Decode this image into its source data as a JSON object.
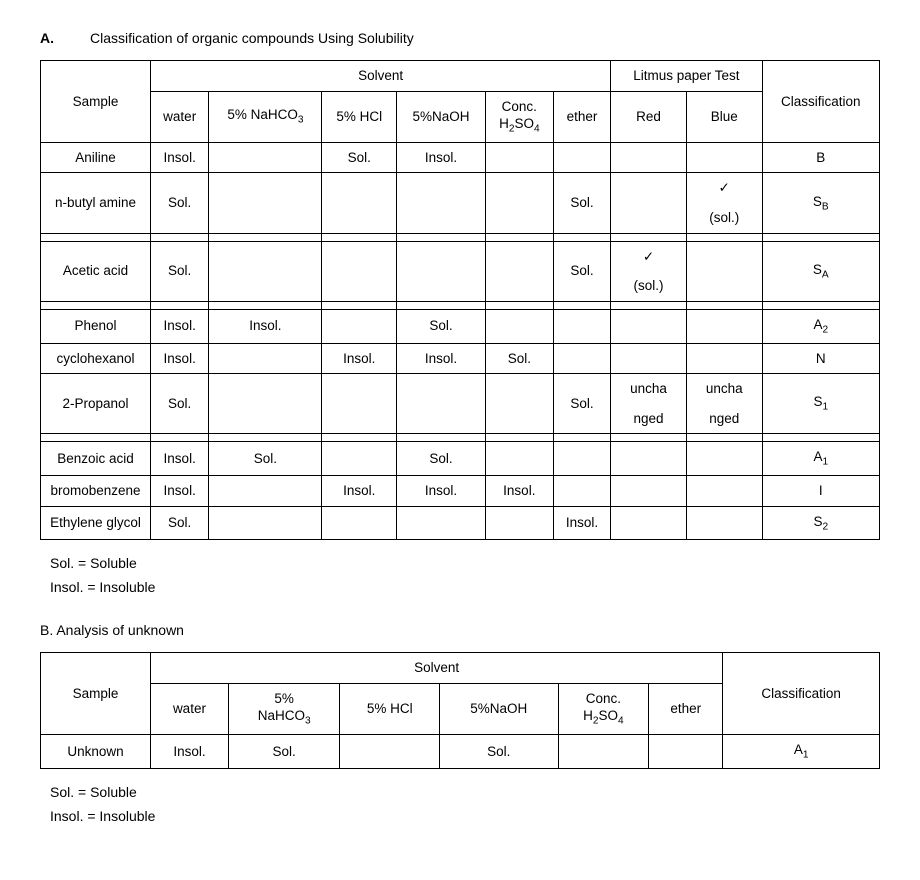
{
  "sectionA": {
    "letter": "A.",
    "title": "Classification of organic compounds Using Solubility",
    "headers": {
      "sample": "Sample",
      "solvent": "Solvent",
      "litmus": "Litmus paper Test",
      "classification": "Classification",
      "water": "water",
      "nahco3": "5% NaHCO",
      "nahco3_sub": "3",
      "hcl": "5% HCl",
      "naoh": "5%NaOH",
      "h2so4_line1": "Conc.",
      "h2so4_line2_a": "H",
      "h2so4_line2_b": "2",
      "h2so4_line2_c": "SO",
      "h2so4_line2_d": "4",
      "ether": "ether",
      "red": "Red",
      "blue": "Blue"
    },
    "rows": [
      {
        "sample": "Aniline",
        "water": "Insol.",
        "nahco3": "",
        "hcl": "Sol.",
        "naoh": "Insol.",
        "h2so4": "",
        "ether": "",
        "red": "",
        "blue": "",
        "class": "B",
        "class_sub": ""
      },
      {
        "sample": "n-butyl amine",
        "water": "Sol.",
        "nahco3": "",
        "hcl": "",
        "naoh": "",
        "h2so4": "",
        "ether": "Sol.",
        "red": "",
        "blue": "✓",
        "red2": "",
        "blue2": "(sol.)",
        "class": "S",
        "class_sub": "B",
        "two_line_litmus": true
      },
      {
        "sample": "Acetic acid",
        "water": "Sol.",
        "nahco3": "",
        "hcl": "",
        "naoh": "",
        "h2so4": "",
        "ether": "Sol.",
        "red": "✓",
        "blue": "",
        "red2": "(sol.)",
        "blue2": "",
        "class": "S",
        "class_sub": "A",
        "two_line_litmus": true
      },
      {
        "sample": "Phenol",
        "water": "Insol.",
        "nahco3": "Insol.",
        "hcl": "",
        "naoh": "Sol.",
        "h2so4": "",
        "ether": "",
        "red": "",
        "blue": "",
        "class": "A",
        "class_sub": "2"
      },
      {
        "sample": "cyclohexanol",
        "water": "Insol.",
        "nahco3": "",
        "hcl": "Insol.",
        "naoh": "Insol.",
        "h2so4": "Sol.",
        "ether": "",
        "red": "",
        "blue": "",
        "class": "N",
        "class_sub": ""
      },
      {
        "sample": "2-Propanol",
        "water": "Sol.",
        "nahco3": "",
        "hcl": "",
        "naoh": "",
        "h2so4": "",
        "ether": "Sol.",
        "red": "uncha",
        "blue": "uncha",
        "red2": "nged",
        "blue2": "nged",
        "class": "S",
        "class_sub": "1",
        "two_line_litmus": true
      },
      {
        "sample": "Benzoic acid",
        "water": "Insol.",
        "nahco3": "Sol.",
        "hcl": "",
        "naoh": "Sol.",
        "h2so4": "",
        "ether": "",
        "red": "",
        "blue": "",
        "class": "A",
        "class_sub": "1"
      },
      {
        "sample": "bromobenzene",
        "water": "Insol.",
        "nahco3": "",
        "hcl": "Insol.",
        "naoh": "Insol.",
        "h2so4": "Insol.",
        "ether": "",
        "red": "",
        "blue": "",
        "class": "I",
        "class_sub": ""
      },
      {
        "sample": "Ethylene glycol",
        "water": "Sol.",
        "nahco3": "",
        "hcl": "",
        "naoh": "",
        "h2so4": "",
        "ether": "Insol.",
        "red": "",
        "blue": "",
        "class": "S",
        "class_sub": "2"
      }
    ],
    "group_breaks_after": [
      1,
      2,
      5
    ],
    "legend1": "Sol. = Soluble",
    "legend2": "Insol. = Insoluble"
  },
  "sectionB": {
    "title": "B.  Analysis of unknown",
    "headers": {
      "sample": "Sample",
      "solvent": "Solvent",
      "classification": "Classification",
      "water": "water",
      "nahco3_line1": "5%",
      "nahco3_line2a": "NaHCO",
      "nahco3_line2b": "3",
      "hcl": "5% HCl",
      "naoh": "5%NaOH",
      "h2so4_line1": "Conc.",
      "h2so4_line2_a": "H",
      "h2so4_line2_b": "2",
      "h2so4_line2_c": "SO",
      "h2so4_line2_d": "4",
      "ether": "ether"
    },
    "rows": [
      {
        "sample": "Unknown",
        "water": "Insol.",
        "nahco3": "Sol.",
        "hcl": "",
        "naoh": "Sol.",
        "h2so4": "",
        "ether": "",
        "class": "A",
        "class_sub": "1"
      }
    ],
    "legend1": "Sol. = Soluble",
    "legend2": "Insol. = Insoluble"
  }
}
